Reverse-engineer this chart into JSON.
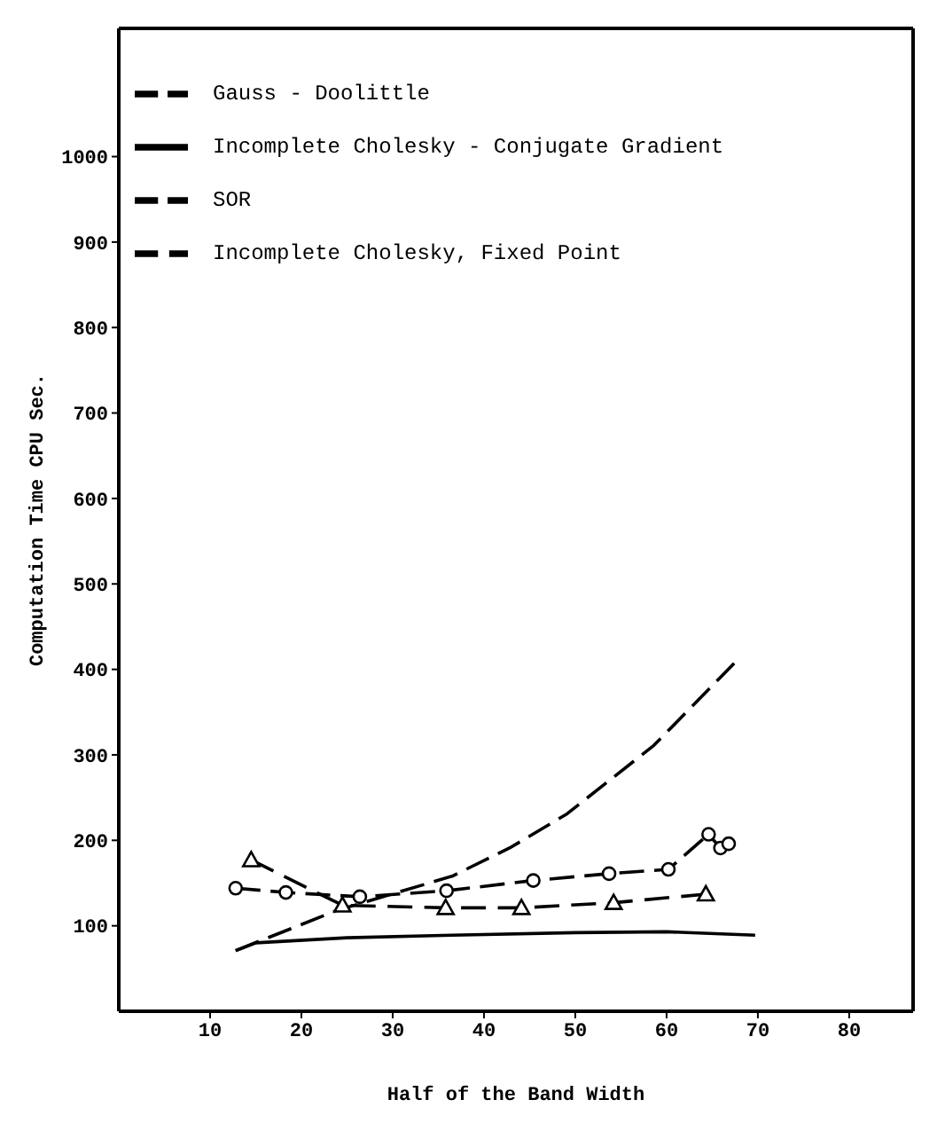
{
  "chart_data": {
    "type": "line",
    "xlabel": "Half of the Band Width",
    "ylabel": "Computation Time CPU Sec.",
    "xlim": [
      0,
      87
    ],
    "ylim": [
      0,
      1150
    ],
    "xticks": [
      10,
      20,
      30,
      40,
      50,
      60,
      70,
      80
    ],
    "yticks": [
      100,
      200,
      300,
      400,
      500,
      600,
      700,
      800,
      900,
      1000
    ],
    "grid": false,
    "legend": "top left",
    "series": [
      {
        "name": "Gauss - Doolittle",
        "color": "#000000",
        "line_style": "dashed",
        "marker": "none",
        "x": [
          12.8,
          23.9,
          36.5,
          42.8,
          49.1,
          58.6,
          67.4
        ],
        "values": [
          71,
          118,
          158,
          191,
          231,
          311,
          407
        ]
      },
      {
        "name": "Incomplete Cholesky - Conjugate Gradient",
        "color": "#000000",
        "line_style": "solid",
        "marker": "none",
        "x": [
          12.8,
          15,
          25,
          36.5,
          50,
          60,
          69.7
        ],
        "values": [
          71,
          80,
          86,
          89,
          92,
          93,
          89
        ]
      },
      {
        "name": "SOR",
        "color": "#000000",
        "line_style": "dashed",
        "marker": "circle",
        "x": [
          12.8,
          18.3,
          26.4,
          35.9,
          45.4,
          53.7,
          60.2,
          64.6,
          65.9,
          66.8
        ],
        "values": [
          144,
          139,
          134,
          141,
          153,
          161,
          166,
          207,
          191,
          196
        ]
      },
      {
        "name": "Incomplete Cholesky, Fixed Point",
        "color": "#000000",
        "line_style": "dashed",
        "marker": "triangle",
        "x": [
          14.5,
          24.5,
          35.8,
          44.1,
          54.2,
          64.3
        ],
        "values": [
          177,
          124,
          121,
          121,
          127,
          137
        ]
      }
    ]
  }
}
